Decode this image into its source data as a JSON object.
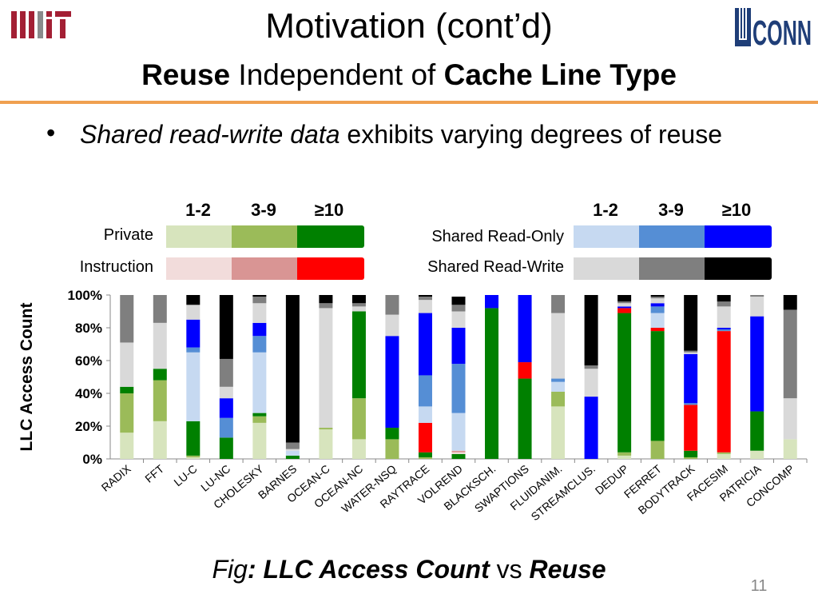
{
  "slide": {
    "title": "Motivation (cont’d)",
    "subtitle": {
      "bold1": "Reuse",
      "mid": " Independent of ",
      "bold2": "Cache Line Type"
    },
    "bullet": {
      "italic": "Shared read-write data",
      "rest": " exhibits varying degrees of reuse"
    },
    "caption": {
      "fig": "Fig",
      "colon_bold": ": LLC Access Count",
      "vs": " vs ",
      "bold_end": "Reuse"
    },
    "page_number": "11",
    "logos": {
      "left": "MIT",
      "right": "UCONN"
    },
    "rule_color": "#f0a050"
  },
  "legend": {
    "bucket_headers": [
      "1-2",
      "3-9",
      "≥10"
    ],
    "left_rows": [
      {
        "label": "Private",
        "colors": [
          "#d7e4bd",
          "#9bbb59",
          "#008000"
        ]
      },
      {
        "label": "Instruction",
        "colors": [
          "#f2dcdb",
          "#d99594",
          "#ff0000"
        ]
      }
    ],
    "right_rows": [
      {
        "label": "Shared Read-Only",
        "colors": [
          "#c6d9f1",
          "#558ed5",
          "#0000ff"
        ]
      },
      {
        "label": "Shared Read-Write",
        "colors": [
          "#d9d9d9",
          "#7f7f7f",
          "#000000"
        ]
      }
    ]
  },
  "chart_data": {
    "type": "bar",
    "stacked": true,
    "ylabel": "LLC Access Count",
    "ylim": [
      0,
      100
    ],
    "yticks": [
      "0%",
      "20%",
      "40%",
      "60%",
      "80%",
      "100%"
    ],
    "grid": false,
    "categories": [
      "RADIX",
      "FFT",
      "LU-C",
      "LU-NC",
      "CHOLESKY",
      "BARNES",
      "OCEAN-C",
      "OCEAN-NC",
      "WATER-NSQ",
      "RAYTRACE",
      "VOLREND",
      "BLACKSCH.",
      "SWAPTIONS",
      "FLUIDANIM.",
      "STREAMCLUS.",
      "DEDUP",
      "FERRET",
      "BODYTRACK",
      "FACESIM",
      "PATRICIA",
      "CONCOMP"
    ],
    "series": [
      {
        "name": "Private 1-2",
        "color": "#d7e4bd",
        "values": [
          16,
          23,
          1,
          0,
          22,
          0,
          18,
          12,
          0,
          0,
          0,
          0,
          0,
          32,
          0,
          2,
          0,
          0,
          3,
          5,
          12
        ]
      },
      {
        "name": "Private 3-9",
        "color": "#9bbb59",
        "values": [
          24,
          25,
          1,
          0,
          4,
          0,
          1,
          25,
          12,
          1,
          0,
          0,
          0,
          9,
          0,
          2,
          11,
          1,
          1,
          0,
          0
        ]
      },
      {
        "name": "Private ≥10",
        "color": "#008000",
        "values": [
          4,
          7,
          21,
          13,
          2,
          2,
          0,
          53,
          7,
          3,
          3,
          92,
          49,
          0,
          0,
          85,
          67,
          4,
          0,
          24,
          0
        ]
      },
      {
        "name": "Instruction 1-2",
        "color": "#f2dcdb",
        "values": [
          0,
          0,
          0,
          0,
          0,
          0,
          0,
          0,
          0,
          0,
          1,
          0,
          0,
          0,
          0,
          0,
          0,
          0,
          0,
          0,
          0
        ]
      },
      {
        "name": "Instruction 3-9",
        "color": "#d99594",
        "values": [
          0,
          0,
          0,
          0,
          0,
          0,
          0,
          0,
          0,
          0,
          1,
          0,
          0,
          0,
          0,
          0,
          0,
          0,
          0,
          0,
          0
        ]
      },
      {
        "name": "Instruction ≥10",
        "color": "#ff0000",
        "values": [
          0,
          0,
          0,
          0,
          0,
          0,
          0,
          0,
          0,
          18,
          0,
          0,
          10,
          0,
          0,
          3,
          2,
          28,
          74,
          0,
          0
        ]
      },
      {
        "name": "Shared Read-Only 1-2",
        "color": "#c6d9f1",
        "values": [
          0,
          0,
          42,
          0,
          37,
          3,
          0,
          0,
          0,
          10,
          23,
          0,
          0,
          6,
          0,
          0,
          9,
          0,
          0,
          0,
          0
        ]
      },
      {
        "name": "Shared Read-Only 3-9",
        "color": "#558ed5",
        "values": [
          0,
          0,
          3,
          12,
          10,
          0,
          0,
          0,
          0,
          19,
          30,
          0,
          0,
          2,
          0,
          0,
          4,
          1,
          1,
          0,
          0
        ]
      },
      {
        "name": "Shared Read-Only ≥10",
        "color": "#0000ff",
        "values": [
          0,
          0,
          17,
          12,
          8,
          0,
          0,
          0,
          56,
          38,
          22,
          8,
          41,
          0,
          38,
          1,
          2,
          30,
          1,
          58,
          0
        ]
      },
      {
        "name": "Shared Read-Write 1-2",
        "color": "#d9d9d9",
        "values": [
          27,
          28,
          9,
          7,
          12,
          1,
          73,
          3,
          13,
          8,
          10,
          0,
          0,
          40,
          17,
          2,
          3,
          1,
          13,
          12,
          25
        ]
      },
      {
        "name": "Shared Read-Write 3-9",
        "color": "#7f7f7f",
        "values": [
          29,
          17,
          0,
          17,
          4,
          4,
          3,
          2,
          12,
          2,
          4,
          0,
          0,
          11,
          2,
          1,
          1,
          1,
          3,
          1,
          54
        ]
      },
      {
        "name": "Shared Read-Write ≥10",
        "color": "#000000",
        "values": [
          0,
          0,
          6,
          39,
          1,
          90,
          5,
          5,
          0,
          1,
          5,
          0,
          0,
          0,
          43,
          4,
          1,
          34,
          4,
          0,
          9
        ]
      }
    ]
  }
}
